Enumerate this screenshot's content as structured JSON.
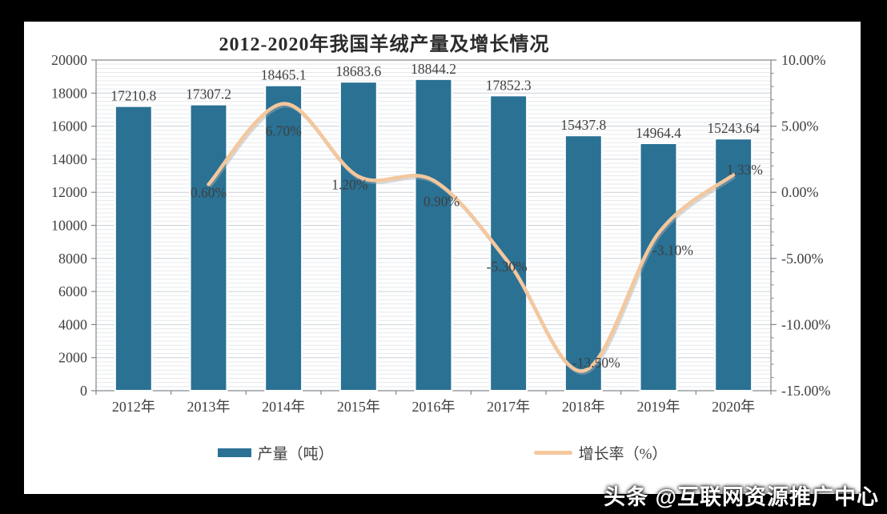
{
  "title": "2012-2020年我国羊绒产量及增长情况",
  "legend": {
    "bars_label": "产量（吨）",
    "line_label": "增长率（%）"
  },
  "watermark": "头条 @互联网资源推广中心",
  "colors": {
    "bar": "#2a7194",
    "line": "#f4c79d",
    "line_shadow": "#a9adb2",
    "text": "#3f3f3f",
    "grid_minor": "#e6e9ec",
    "grid_major": "#ccd1d7",
    "axis": "#7f868c",
    "title": "#2b2b2b"
  },
  "chart_data": {
    "type": "bar",
    "subtype": "bar-and-line-combo",
    "title": "2012-2020年我国羊绒产量及增长情况",
    "categories": [
      "2012年",
      "2013年",
      "2014年",
      "2015年",
      "2016年",
      "2017年",
      "2018年",
      "2019年",
      "2020年"
    ],
    "series": [
      {
        "name": "产量（吨）",
        "type": "bar",
        "axis": "left",
        "values": [
          17210.8,
          17307.2,
          18465.1,
          18683.6,
          18844.2,
          17852.3,
          15437.8,
          14964.4,
          15243.64
        ],
        "labels": [
          "17210.8",
          "17307.2",
          "18465.1",
          "18683.6",
          "18844.2",
          "17852.3",
          "15437.8",
          "14964.4",
          "15243.64"
        ]
      },
      {
        "name": "增长率（%）",
        "type": "line",
        "axis": "right",
        "values": [
          null,
          0.6,
          6.7,
          1.2,
          0.9,
          -5.3,
          -13.5,
          -3.1,
          1.33
        ],
        "labels": [
          null,
          "0.60%",
          "6.70%",
          "1.20%",
          "0.90%",
          "-5.30%",
          "-13.50%",
          "-3.10%",
          "1.33%"
        ]
      }
    ],
    "left_axis": {
      "min": 0,
      "max": 20000,
      "step": 2000,
      "ticks": [
        "0",
        "2000",
        "4000",
        "6000",
        "8000",
        "10000",
        "12000",
        "14000",
        "16000",
        "18000",
        "20000"
      ]
    },
    "right_axis": {
      "min": -15,
      "max": 10,
      "step": 5,
      "ticks": [
        "-15.00%",
        "-10.00%",
        "-5.00%",
        "0.00%",
        "5.00%",
        "10.00%"
      ]
    },
    "grid": true,
    "legend_position": "bottom"
  }
}
